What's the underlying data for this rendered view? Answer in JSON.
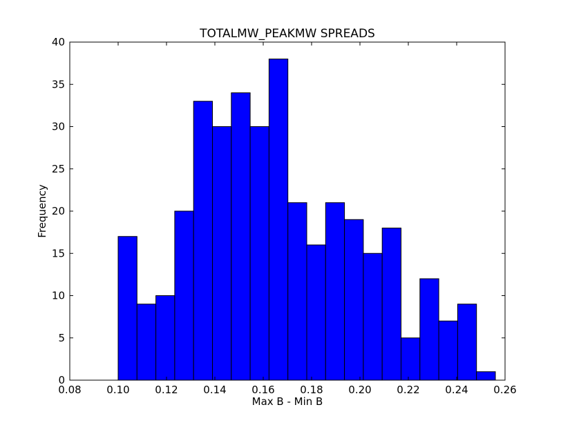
{
  "chart_data": {
    "type": "bar",
    "title": "TOTALMW_PEAKMW SPREADS",
    "xlabel": "Max B - Min B",
    "ylabel": "Frequency",
    "xlim": [
      0.08,
      0.26
    ],
    "ylim": [
      0,
      40
    ],
    "x_ticks": [
      "0.08",
      "0.10",
      "0.12",
      "0.14",
      "0.16",
      "0.18",
      "0.20",
      "0.22",
      "0.24",
      "0.26"
    ],
    "y_ticks": [
      "0",
      "5",
      "10",
      "15",
      "20",
      "25",
      "30",
      "35",
      "40"
    ],
    "bin_edges": [
      0.1,
      0.1078,
      0.1156,
      0.1234,
      0.1312,
      0.139,
      0.1468,
      0.1546,
      0.1624,
      0.1702,
      0.178,
      0.1858,
      0.1936,
      0.2014,
      0.2092,
      0.217,
      0.2248,
      0.2326,
      0.2404,
      0.2482,
      0.256
    ],
    "values": [
      17,
      9,
      10,
      20,
      33,
      30,
      34,
      30,
      38,
      21,
      16,
      21,
      19,
      15,
      18,
      5,
      12,
      7,
      9,
      1
    ],
    "bar_color": "#0000ff",
    "grid": false,
    "legend": "none"
  }
}
